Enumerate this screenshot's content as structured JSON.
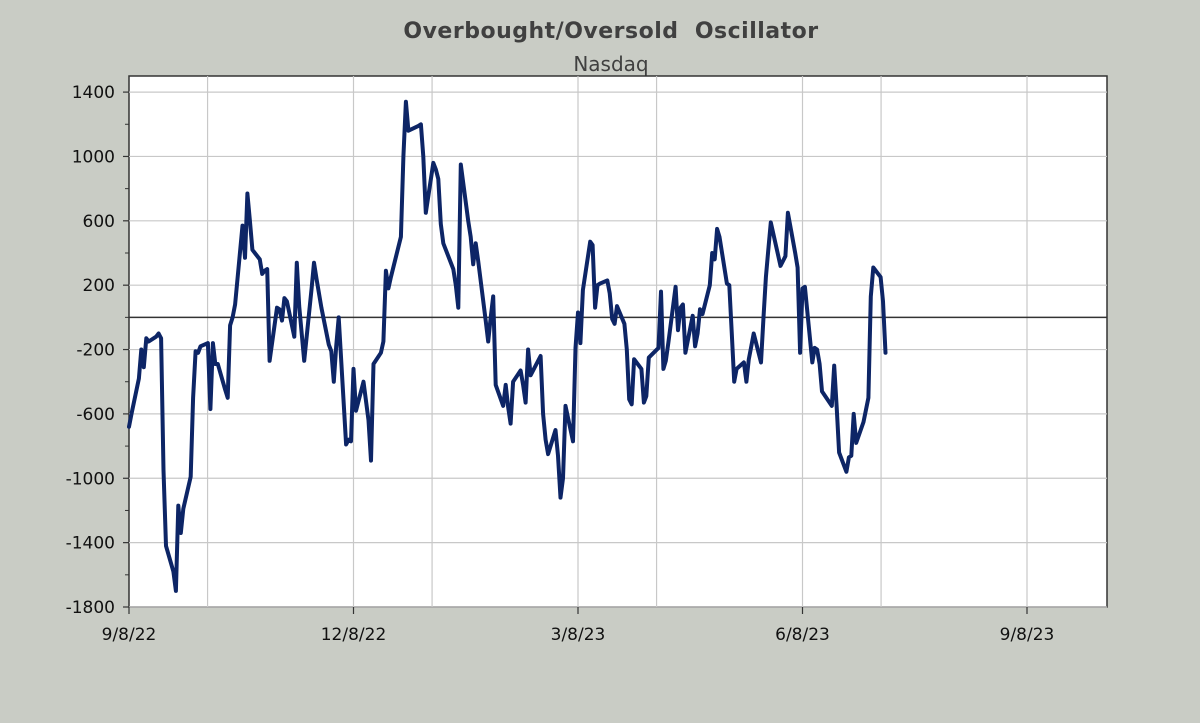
{
  "chart_data": {
    "type": "line",
    "title": "Overbought/Oversold  Oscillator",
    "subtitle": "Nasdaq",
    "xlabel": "",
    "ylabel": "",
    "x_ticks": [
      "9/8/22",
      "12/8/22",
      "3/8/23",
      "6/8/23",
      "9/8/23"
    ],
    "x_range": [
      "2022-09-08",
      "2023-10-16"
    ],
    "y_ticks": [
      1400,
      1000,
      600,
      200,
      -200,
      -600,
      -1000,
      -1400,
      -1800
    ],
    "ylim": [
      -1800,
      1500
    ],
    "grid": true,
    "reference_line": 0,
    "colors": {
      "line": "#0d2566",
      "background": "#c9ccc5",
      "plot_bg": "#ffffff",
      "grid": "#c8c8c8",
      "reference": "#333333"
    },
    "series": [
      {
        "values": [
          [
            "2022-09-08",
            -680
          ],
          [
            "2022-09-09",
            -600
          ],
          [
            "2022-09-12",
            -380
          ],
          [
            "2022-09-13",
            -200
          ],
          [
            "2022-09-14",
            -310
          ],
          [
            "2022-09-15",
            -130
          ],
          [
            "2022-09-16",
            -150
          ],
          [
            "2022-09-19",
            -120
          ],
          [
            "2022-09-20",
            -100
          ],
          [
            "2022-09-21",
            -130
          ],
          [
            "2022-09-22",
            -950
          ],
          [
            "2022-09-23",
            -1420
          ],
          [
            "2022-09-26",
            -1580
          ],
          [
            "2022-09-27",
            -1700
          ],
          [
            "2022-09-28",
            -1170
          ],
          [
            "2022-09-29",
            -1340
          ],
          [
            "2022-09-30",
            -1190
          ],
          [
            "2022-10-03",
            -990
          ],
          [
            "2022-10-04",
            -500
          ],
          [
            "2022-10-05",
            -210
          ],
          [
            "2022-10-06",
            -220
          ],
          [
            "2022-10-07",
            -180
          ],
          [
            "2022-10-10",
            -160
          ],
          [
            "2022-10-11",
            -570
          ],
          [
            "2022-10-12",
            -160
          ],
          [
            "2022-10-13",
            -290
          ],
          [
            "2022-10-14",
            -290
          ],
          [
            "2022-10-17",
            -450
          ],
          [
            "2022-10-18",
            -500
          ],
          [
            "2022-10-19",
            -50
          ],
          [
            "2022-10-20",
            0
          ],
          [
            "2022-10-21",
            80
          ],
          [
            "2022-10-24",
            570
          ],
          [
            "2022-10-25",
            370
          ],
          [
            "2022-10-26",
            770
          ],
          [
            "2022-10-27",
            600
          ],
          [
            "2022-10-28",
            420
          ],
          [
            "2022-10-31",
            360
          ],
          [
            "2022-11-01",
            270
          ],
          [
            "2022-11-02",
            290
          ],
          [
            "2022-11-03",
            300
          ],
          [
            "2022-11-04",
            -270
          ],
          [
            "2022-11-07",
            60
          ],
          [
            "2022-11-08",
            50
          ],
          [
            "2022-11-09",
            -20
          ],
          [
            "2022-11-10",
            120
          ],
          [
            "2022-11-11",
            100
          ],
          [
            "2022-11-14",
            -120
          ],
          [
            "2022-11-15",
            340
          ],
          [
            "2022-11-16",
            70
          ],
          [
            "2022-11-17",
            -100
          ],
          [
            "2022-11-18",
            -270
          ],
          [
            "2022-11-21",
            180
          ],
          [
            "2022-11-22",
            340
          ],
          [
            "2022-11-23",
            240
          ],
          [
            "2022-11-25",
            60
          ],
          [
            "2022-11-28",
            -170
          ],
          [
            "2022-11-29",
            -210
          ],
          [
            "2022-11-30",
            -400
          ],
          [
            "2022-12-01",
            -180
          ],
          [
            "2022-12-02",
            0
          ],
          [
            "2022-12-05",
            -790
          ],
          [
            "2022-12-06",
            -760
          ],
          [
            "2022-12-07",
            -770
          ],
          [
            "2022-12-08",
            -320
          ],
          [
            "2022-12-09",
            -580
          ],
          [
            "2022-12-12",
            -400
          ],
          [
            "2022-12-13",
            -520
          ],
          [
            "2022-12-14",
            -640
          ],
          [
            "2022-12-15",
            -890
          ],
          [
            "2022-12-16",
            -290
          ],
          [
            "2022-12-19",
            -220
          ],
          [
            "2022-12-20",
            -150
          ],
          [
            "2022-12-21",
            290
          ],
          [
            "2022-12-22",
            180
          ],
          [
            "2022-12-23",
            250
          ],
          [
            "2022-12-27",
            500
          ],
          [
            "2022-12-28",
            1000
          ],
          [
            "2022-12-29",
            1340
          ],
          [
            "2022-12-30",
            1160
          ],
          [
            "2023-01-03",
            1190
          ],
          [
            "2023-01-04",
            1200
          ],
          [
            "2023-01-05",
            1000
          ],
          [
            "2023-01-06",
            650
          ],
          [
            "2023-01-09",
            960
          ],
          [
            "2023-01-10",
            920
          ],
          [
            "2023-01-11",
            860
          ],
          [
            "2023-01-12",
            580
          ],
          [
            "2023-01-13",
            460
          ],
          [
            "2023-01-17",
            300
          ],
          [
            "2023-01-18",
            200
          ],
          [
            "2023-01-19",
            60
          ],
          [
            "2023-01-20",
            950
          ],
          [
            "2023-01-23",
            600
          ],
          [
            "2023-01-24",
            500
          ],
          [
            "2023-01-25",
            330
          ],
          [
            "2023-01-26",
            460
          ],
          [
            "2023-01-27",
            350
          ],
          [
            "2023-01-30",
            -20
          ],
          [
            "2023-01-31",
            -150
          ],
          [
            "2023-02-01",
            0
          ],
          [
            "2023-02-02",
            130
          ],
          [
            "2023-02-03",
            -420
          ],
          [
            "2023-02-06",
            -550
          ],
          [
            "2023-02-07",
            -420
          ],
          [
            "2023-02-08",
            -560
          ],
          [
            "2023-02-09",
            -660
          ],
          [
            "2023-02-10",
            -400
          ],
          [
            "2023-02-13",
            -330
          ],
          [
            "2023-02-14",
            -420
          ],
          [
            "2023-02-15",
            -530
          ],
          [
            "2023-02-16",
            -200
          ],
          [
            "2023-02-17",
            -360
          ],
          [
            "2023-02-21",
            -240
          ],
          [
            "2023-02-22",
            -600
          ],
          [
            "2023-02-23",
            -760
          ],
          [
            "2023-02-24",
            -850
          ],
          [
            "2023-02-27",
            -700
          ],
          [
            "2023-02-28",
            -860
          ],
          [
            "2023-03-01",
            -1120
          ],
          [
            "2023-03-02",
            -1000
          ],
          [
            "2023-03-03",
            -550
          ],
          [
            "2023-03-06",
            -770
          ],
          [
            "2023-03-07",
            -190
          ],
          [
            "2023-03-08",
            30
          ],
          [
            "2023-03-09",
            -160
          ],
          [
            "2023-03-10",
            170
          ],
          [
            "2023-03-13",
            470
          ],
          [
            "2023-03-14",
            450
          ],
          [
            "2023-03-15",
            60
          ],
          [
            "2023-03-16",
            200
          ],
          [
            "2023-03-17",
            210
          ],
          [
            "2023-03-20",
            230
          ],
          [
            "2023-03-21",
            150
          ],
          [
            "2023-03-22",
            -10
          ],
          [
            "2023-03-23",
            -40
          ],
          [
            "2023-03-24",
            70
          ],
          [
            "2023-03-27",
            -40
          ],
          [
            "2023-03-28",
            -200
          ],
          [
            "2023-03-29",
            -510
          ],
          [
            "2023-03-30",
            -540
          ],
          [
            "2023-03-31",
            -260
          ],
          [
            "2023-04-03",
            -320
          ],
          [
            "2023-04-04",
            -530
          ],
          [
            "2023-04-05",
            -490
          ],
          [
            "2023-04-06",
            -250
          ],
          [
            "2023-04-10",
            -190
          ],
          [
            "2023-04-11",
            160
          ],
          [
            "2023-04-12",
            -320
          ],
          [
            "2023-04-13",
            -270
          ],
          [
            "2023-04-14",
            -160
          ],
          [
            "2023-04-17",
            190
          ],
          [
            "2023-04-18",
            -80
          ],
          [
            "2023-04-19",
            60
          ],
          [
            "2023-04-20",
            80
          ],
          [
            "2023-04-21",
            -220
          ],
          [
            "2023-04-24",
            10
          ],
          [
            "2023-04-25",
            -180
          ],
          [
            "2023-04-26",
            -100
          ],
          [
            "2023-04-27",
            50
          ],
          [
            "2023-04-28",
            20
          ],
          [
            "2023-05-01",
            200
          ],
          [
            "2023-05-02",
            400
          ],
          [
            "2023-05-03",
            360
          ],
          [
            "2023-05-04",
            550
          ],
          [
            "2023-05-05",
            500
          ],
          [
            "2023-05-08",
            210
          ],
          [
            "2023-05-09",
            200
          ],
          [
            "2023-05-10",
            -90
          ],
          [
            "2023-05-11",
            -400
          ],
          [
            "2023-05-12",
            -320
          ],
          [
            "2023-05-15",
            -280
          ],
          [
            "2023-05-16",
            -400
          ],
          [
            "2023-05-17",
            -260
          ],
          [
            "2023-05-18",
            -180
          ],
          [
            "2023-05-19",
            -100
          ],
          [
            "2023-05-22",
            -280
          ],
          [
            "2023-05-23",
            0
          ],
          [
            "2023-05-24",
            250
          ],
          [
            "2023-05-25",
            420
          ],
          [
            "2023-05-26",
            590
          ],
          [
            "2023-05-30",
            320
          ],
          [
            "2023-05-31",
            350
          ],
          [
            "2023-06-01",
            380
          ],
          [
            "2023-06-02",
            650
          ],
          [
            "2023-06-05",
            400
          ],
          [
            "2023-06-06",
            310
          ],
          [
            "2023-06-07",
            -220
          ],
          [
            "2023-06-08",
            180
          ],
          [
            "2023-06-09",
            190
          ],
          [
            "2023-06-12",
            -280
          ],
          [
            "2023-06-13",
            -190
          ],
          [
            "2023-06-14",
            -200
          ],
          [
            "2023-06-15",
            -290
          ],
          [
            "2023-06-16",
            -460
          ],
          [
            "2023-06-20",
            -550
          ],
          [
            "2023-06-21",
            -300
          ],
          [
            "2023-06-22",
            -560
          ],
          [
            "2023-06-23",
            -840
          ],
          [
            "2023-06-26",
            -960
          ],
          [
            "2023-06-27",
            -870
          ],
          [
            "2023-06-28",
            -860
          ],
          [
            "2023-06-29",
            -600
          ],
          [
            "2023-06-30",
            -780
          ],
          [
            "2023-07-03",
            -650
          ],
          [
            "2023-07-05",
            -500
          ],
          [
            "2023-07-06",
            130
          ],
          [
            "2023-07-07",
            310
          ],
          [
            "2023-07-10",
            250
          ],
          [
            "2023-07-11",
            100
          ],
          [
            "2023-07-12",
            -220
          ]
        ]
      }
    ]
  }
}
